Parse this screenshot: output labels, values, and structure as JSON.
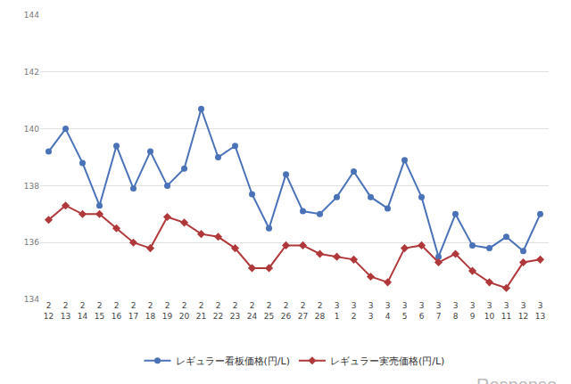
{
  "chart_data": {
    "type": "line",
    "categories": [
      "2\n12",
      "2\n13",
      "2\n14",
      "2\n15",
      "2\n16",
      "2\n17",
      "2\n18",
      "2\n19",
      "2\n20",
      "2\n21",
      "2\n22",
      "2\n23",
      "2\n24",
      "2\n25",
      "2\n26",
      "2\n27",
      "2\n28",
      "3\n1",
      "3\n2",
      "3\n3",
      "3\n4",
      "3\n5",
      "3\n6",
      "3\n7",
      "3\n8",
      "3\n9",
      "3\n10",
      "3\n11",
      "3\n12",
      "3\n13"
    ],
    "series": [
      {
        "name": "レギュラー看板価格(円/L)",
        "color": "#4a72b8",
        "marker": "circle",
        "values": [
          139.2,
          140.0,
          138.8,
          137.3,
          139.4,
          137.9,
          139.2,
          138.0,
          138.6,
          140.7,
          139.0,
          139.4,
          137.7,
          136.5,
          138.4,
          137.1,
          137.0,
          137.6,
          138.5,
          137.6,
          137.2,
          138.9,
          137.6,
          135.5,
          137.0,
          135.9,
          135.8,
          136.2,
          135.7,
          137.0
        ]
      },
      {
        "name": "レギュラー実売価格(円/L)",
        "color": "#b0383a",
        "marker": "diamond",
        "values": [
          136.8,
          137.3,
          137.0,
          137.0,
          136.5,
          136.0,
          135.8,
          136.9,
          136.7,
          136.3,
          136.2,
          135.8,
          135.1,
          135.1,
          135.9,
          135.9,
          135.6,
          135.5,
          135.4,
          134.8,
          134.6,
          135.8,
          135.9,
          135.3,
          135.6,
          135.0,
          134.6,
          134.4,
          135.3,
          135.4
        ]
      }
    ],
    "ylim": [
      134,
      144
    ],
    "yticks": [
      134,
      136,
      138,
      140,
      142,
      144
    ],
    "grid": true,
    "legend": "bottom",
    "annotations": [
      {
        "text": "Response."
      }
    ]
  }
}
